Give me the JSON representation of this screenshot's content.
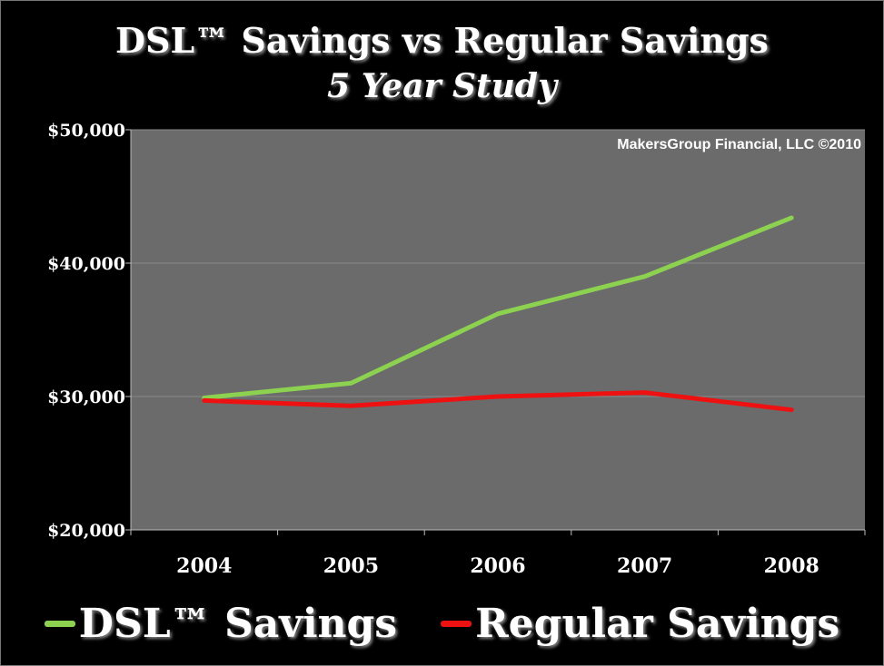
{
  "chart_data": {
    "type": "line",
    "title": "DSL™ Savings vs Regular Savings",
    "subtitle": "5 Year Study",
    "annotation": "MakersGroup Financial, LLC ©2010",
    "categories": [
      "2004",
      "2005",
      "2006",
      "2007",
      "2008"
    ],
    "series": [
      {
        "name": "DSL™ Savings",
        "color": "#8cd14f",
        "values": [
          29900,
          31000,
          36200,
          39000,
          43400
        ]
      },
      {
        "name": "Regular Savings",
        "color": "#ee1111",
        "values": [
          29700,
          29300,
          30000,
          30300,
          29000
        ]
      }
    ],
    "ylim": [
      20000,
      50000
    ],
    "yticks": [
      20000,
      30000,
      40000,
      50000
    ],
    "ytick_labels": [
      "$20,000",
      "$30,000",
      "$40,000",
      "$50,000"
    ],
    "grid": true,
    "legend": "bottom",
    "plot_background": "#6b6b6b",
    "page_background": "#000000"
  }
}
